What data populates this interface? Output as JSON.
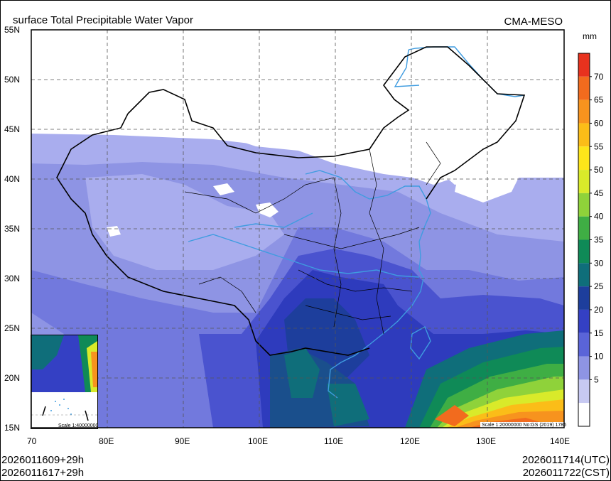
{
  "title": "surface Total Precipitable Water Vapor",
  "source": "CMA-MESO",
  "colorbar": {
    "unit": "mm",
    "levels": [
      "70",
      "65",
      "60",
      "55",
      "50",
      "45",
      "40",
      "35",
      "30",
      "25",
      "20",
      "15",
      "10",
      "5"
    ],
    "colors": [
      "#e8321e",
      "#f26b1e",
      "#f7931e",
      "#fbbd18",
      "#fde51a",
      "#d9ea2a",
      "#8fd23a",
      "#3fae44",
      "#0f8a57",
      "#0f6e7a",
      "#1d3e9c",
      "#3440c4",
      "#5a64d8",
      "#8e94e4",
      "#c7c9f2",
      "#ffffff"
    ]
  },
  "map": {
    "lon_ticks": [
      "70",
      "80E",
      "90E",
      "100E",
      "110E",
      "120E",
      "130E",
      "140E"
    ],
    "lat_ticks": [
      "55N",
      "50N",
      "45N",
      "40N",
      "35N",
      "30N",
      "25N",
      "20N",
      "15N"
    ],
    "scale_main": "Scale 1:20000000 No:GS (2019) 1786",
    "scale_inset": "Scale 1:40000000"
  },
  "footer": {
    "left_line1": "2026011609+29h",
    "left_line2": "2026011617+29h",
    "right_line1": "2026011714(UTC)",
    "right_line2": "2026011722(CST)"
  }
}
